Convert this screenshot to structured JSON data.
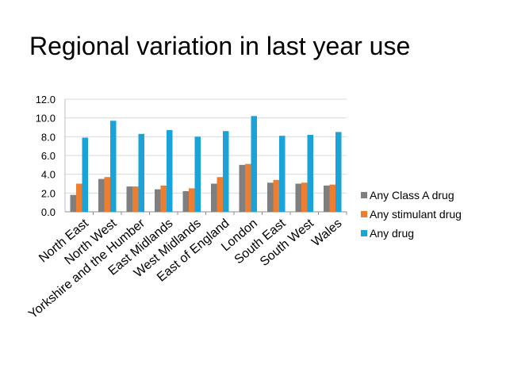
{
  "title": "Regional variation in last year use",
  "chart_data": {
    "type": "bar",
    "categories": [
      "North East",
      "North West",
      "Yorkshire and the Humber",
      "East Midlands",
      "West Midlands",
      "East of England",
      "London",
      "South East",
      "South West",
      "Wales"
    ],
    "series": [
      {
        "name": "Any Class A drug",
        "color": "#7f7f7f",
        "values": [
          1.8,
          3.5,
          2.7,
          2.4,
          2.2,
          3.0,
          5.0,
          3.1,
          3.0,
          2.8
        ]
      },
      {
        "name": "Any stimulant drug",
        "color": "#ed7d31",
        "values": [
          3.0,
          3.7,
          2.7,
          2.8,
          2.5,
          3.7,
          5.1,
          3.4,
          3.1,
          2.9
        ]
      },
      {
        "name": "Any drug",
        "color": "#1aa3d9",
        "values": [
          7.9,
          9.7,
          8.3,
          8.7,
          8.0,
          8.6,
          10.2,
          8.1,
          8.2,
          8.5
        ]
      }
    ],
    "ylim": [
      0,
      12
    ],
    "yticks": [
      "0.0",
      "2.0",
      "4.0",
      "6.0",
      "8.0",
      "10.0",
      "12.0"
    ],
    "legend_position": "right",
    "grid": true
  }
}
